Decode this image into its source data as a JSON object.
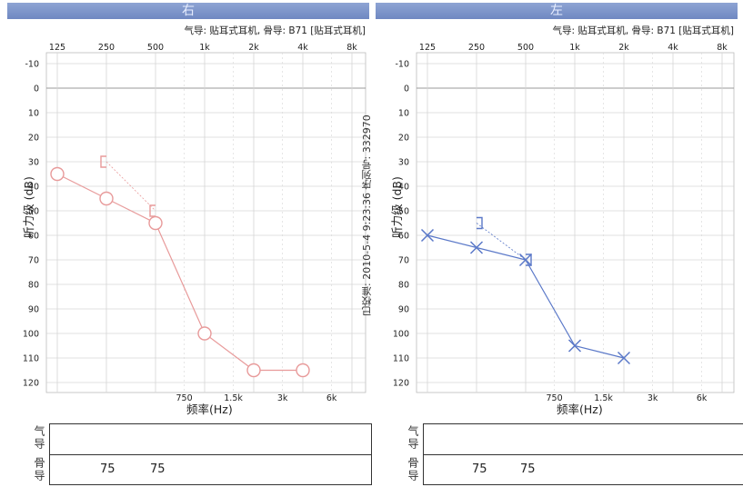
{
  "panels": [
    {
      "header": "右",
      "device_info": "气导: 贴耳式耳机, 骨导: B71 [贴耳式耳机]",
      "ylabel": "听力级 (dB)",
      "xlabel": "频率(Hz)",
      "bottom_table": {
        "air_label": "气导",
        "bone_label": "骨导",
        "bone_values": [
          "75",
          "75"
        ]
      }
    },
    {
      "header": "左",
      "device_info": "气导: 贴耳式耳机, 骨导: B71 [贴耳式耳机]",
      "ylabel": "听力级 (dB)",
      "xlabel": "频率(Hz)",
      "bottom_table": {
        "air_label": "气导",
        "bone_label": "骨导",
        "bone_values": [
          "75",
          "75"
        ]
      }
    }
  ],
  "side_note": "已校准: 2010-5-4 9:23:36 序列号: 332970",
  "colors": {
    "right": "#e89a9a",
    "left": "#5a78c8",
    "header": "#7a92c9",
    "grid": "#d6d6d6"
  },
  "chart_data": [
    {
      "type": "line",
      "title": "右",
      "xlabel": "频率(Hz)",
      "ylabel": "听力级 (dB)",
      "x_ticks_top": [
        "125",
        "250",
        "500",
        "1k",
        "2k",
        "4k",
        "8k"
      ],
      "x_ticks_bottom": [
        "750",
        "1.5k",
        "3k",
        "6k"
      ],
      "y_ticks": [
        "-10",
        "0",
        "10",
        "20",
        "30",
        "40",
        "50",
        "60",
        "70",
        "80",
        "90",
        "100",
        "110",
        "120"
      ],
      "ylim": [
        -10,
        120
      ],
      "y_inverted": true,
      "grid": true,
      "series": [
        {
          "name": "",
          "marker": "circle",
          "x": [
            "125",
            "250",
            "500",
            "1k",
            "2k",
            "4k"
          ],
          "values": [
            35,
            45,
            55,
            100,
            115,
            115
          ]
        },
        {
          "name": "",
          "marker": "bracket-left",
          "dashed": true,
          "x": [
            "250",
            "500"
          ],
          "values": [
            30,
            50
          ]
        }
      ]
    },
    {
      "type": "line",
      "title": "左",
      "xlabel": "频率(Hz)",
      "ylabel": "听力级 (dB)",
      "x_ticks_top": [
        "125",
        "250",
        "500",
        "1k",
        "2k",
        "4k",
        "8k"
      ],
      "x_ticks_bottom": [
        "750",
        "1.5k",
        "3k",
        "6k"
      ],
      "y_ticks": [
        "-10",
        "0",
        "10",
        "20",
        "30",
        "40",
        "50",
        "60",
        "70",
        "80",
        "90",
        "100",
        "110",
        "120"
      ],
      "ylim": [
        -10,
        120
      ],
      "y_inverted": true,
      "grid": true,
      "series": [
        {
          "name": "",
          "marker": "cross",
          "x": [
            "125",
            "250",
            "500",
            "1k",
            "2k"
          ],
          "values": [
            60,
            65,
            70,
            105,
            110
          ]
        },
        {
          "name": "",
          "marker": "bracket-right",
          "dashed": true,
          "x": [
            "250",
            "500"
          ],
          "values": [
            55,
            70
          ]
        }
      ]
    }
  ]
}
